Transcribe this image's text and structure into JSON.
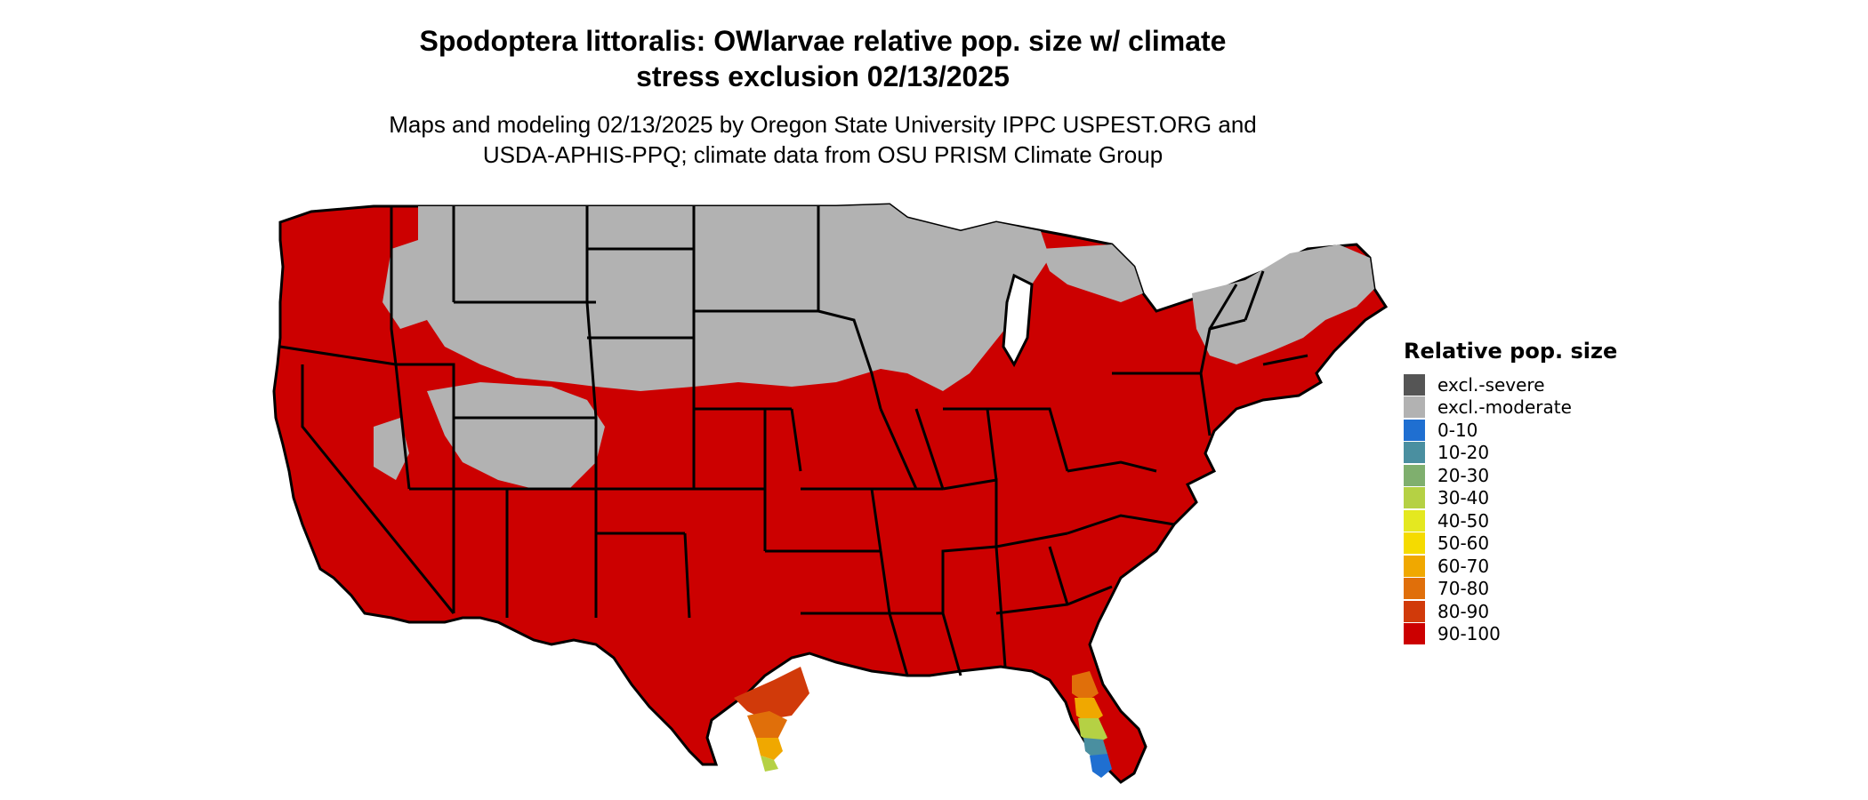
{
  "title": {
    "line1": "Spodoptera littoralis: OWlarvae relative pop. size w/ climate",
    "line2": "stress exclusion 02/13/2025"
  },
  "subtitle": {
    "line1": "Maps and modeling 02/13/2025 by Oregon State University IPPC USPEST.ORG and",
    "line2": "USDA-APHIS-PPQ; climate data from OSU PRISM Climate Group"
  },
  "legend": {
    "title": "Relative pop. size",
    "items": [
      {
        "label": "excl.-severe",
        "color": "#555555"
      },
      {
        "label": "excl.-moderate",
        "color": "#b2b2b2"
      },
      {
        "label": "0-10",
        "color": "#1f6fd1"
      },
      {
        "label": "10-20",
        "color": "#4a8fa0"
      },
      {
        "label": "20-30",
        "color": "#7faf6e"
      },
      {
        "label": "30-40",
        "color": "#b5d144"
      },
      {
        "label": "40-50",
        "color": "#e4e820"
      },
      {
        "label": "50-60",
        "color": "#f5db00"
      },
      {
        "label": "60-70",
        "color": "#f0a800"
      },
      {
        "label": "70-80",
        "color": "#e06f0a"
      },
      {
        "label": "80-90",
        "color": "#d13a0a"
      },
      {
        "label": "90-100",
        "color": "#cc0000"
      }
    ]
  }
}
